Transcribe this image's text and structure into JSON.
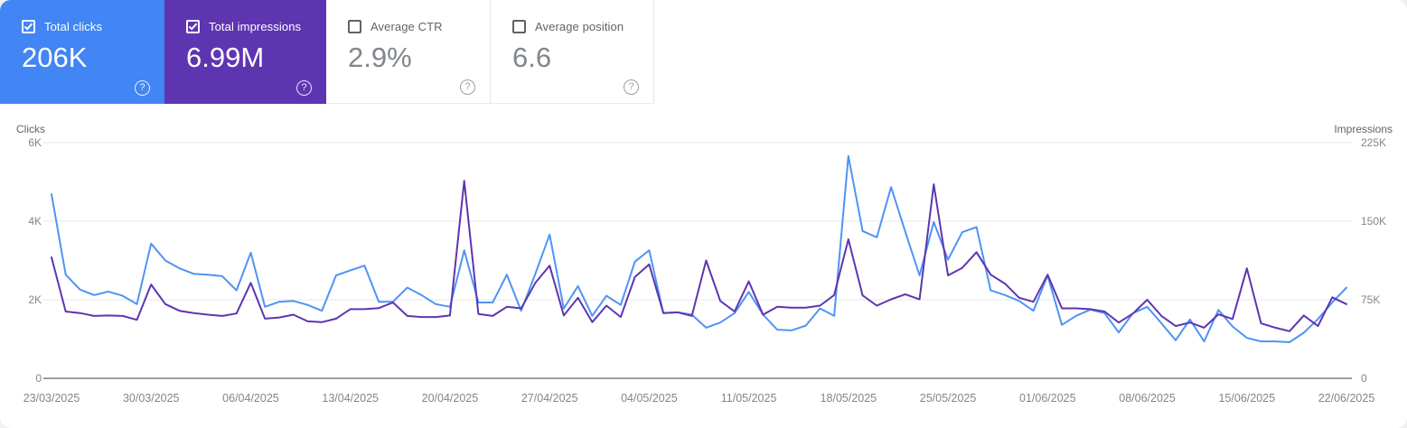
{
  "cards": [
    {
      "label": "Total clicks",
      "value": "206K",
      "selected": true,
      "color": "#4285f4",
      "help_glyph": "?"
    },
    {
      "label": "Total impressions",
      "value": "6.99M",
      "selected": true,
      "color": "#5e35b1",
      "help_glyph": "?"
    },
    {
      "label": "Average CTR",
      "value": "2.9%",
      "selected": false,
      "color": "#ffffff",
      "help_glyph": "?"
    },
    {
      "label": "Average position",
      "value": "6.6",
      "selected": false,
      "color": "#ffffff",
      "help_glyph": "?"
    }
  ],
  "chart_data": {
    "type": "line",
    "grid": true,
    "legend": "none",
    "x_tick_every": 7,
    "left_axis": {
      "label": "Clicks",
      "max": 6000,
      "ticks": [
        {
          "v": 0,
          "label": "0"
        },
        {
          "v": 2000,
          "label": "2K"
        },
        {
          "v": 4000,
          "label": "4K"
        },
        {
          "v": 6000,
          "label": "6K"
        }
      ]
    },
    "right_axis": {
      "label": "Impressions",
      "max": 225000,
      "ticks": [
        {
          "v": 0,
          "label": "0"
        },
        {
          "v": 75000,
          "label": "75K"
        },
        {
          "v": 150000,
          "label": "150K"
        },
        {
          "v": 225000,
          "label": "225K"
        }
      ]
    },
    "dates": [
      "23/03/2025",
      "24/03/2025",
      "25/03/2025",
      "26/03/2025",
      "27/03/2025",
      "28/03/2025",
      "29/03/2025",
      "30/03/2025",
      "31/03/2025",
      "01/04/2025",
      "02/04/2025",
      "03/04/2025",
      "04/04/2025",
      "05/04/2025",
      "06/04/2025",
      "07/04/2025",
      "08/04/2025",
      "09/04/2025",
      "10/04/2025",
      "11/04/2025",
      "12/04/2025",
      "13/04/2025",
      "14/04/2025",
      "15/04/2025",
      "16/04/2025",
      "17/04/2025",
      "18/04/2025",
      "19/04/2025",
      "20/04/2025",
      "21/04/2025",
      "22/04/2025",
      "23/04/2025",
      "24/04/2025",
      "25/04/2025",
      "26/04/2025",
      "27/04/2025",
      "28/04/2025",
      "29/04/2025",
      "30/04/2025",
      "01/05/2025",
      "02/05/2025",
      "03/05/2025",
      "04/05/2025",
      "05/05/2025",
      "06/05/2025",
      "07/05/2025",
      "08/05/2025",
      "09/05/2025",
      "10/05/2025",
      "11/05/2025",
      "12/05/2025",
      "13/05/2025",
      "14/05/2025",
      "15/05/2025",
      "16/05/2025",
      "17/05/2025",
      "18/05/2025",
      "19/05/2025",
      "20/05/2025",
      "21/05/2025",
      "22/05/2025",
      "23/05/2025",
      "24/05/2025",
      "25/05/2025",
      "26/05/2025",
      "27/05/2025",
      "28/05/2025",
      "29/05/2025",
      "30/05/2025",
      "31/05/2025",
      "01/06/2025",
      "02/06/2025",
      "03/06/2025",
      "04/06/2025",
      "05/06/2025",
      "06/06/2025",
      "07/06/2025",
      "08/06/2025",
      "09/06/2025",
      "10/06/2025",
      "11/06/2025",
      "12/06/2025",
      "13/06/2025",
      "14/06/2025",
      "15/06/2025",
      "16/06/2025",
      "17/06/2025",
      "18/06/2025",
      "19/06/2025",
      "20/06/2025",
      "21/06/2025",
      "22/06/2025"
    ],
    "series": [
      {
        "name": "Total clicks",
        "axis": "left",
        "color": "#4e94f5",
        "values": [
          4690,
          2640,
          2260,
          2120,
          2210,
          2100,
          1890,
          3430,
          3000,
          2800,
          2660,
          2640,
          2600,
          2240,
          3200,
          1820,
          1950,
          1970,
          1870,
          1720,
          2620,
          2750,
          2870,
          1950,
          1950,
          2310,
          2120,
          1890,
          1820,
          3260,
          1930,
          1930,
          2640,
          1720,
          2660,
          3660,
          1780,
          2350,
          1590,
          2100,
          1870,
          2970,
          3260,
          1660,
          1680,
          1620,
          1290,
          1420,
          1660,
          2200,
          1620,
          1240,
          1220,
          1340,
          1780,
          1590,
          5660,
          3750,
          3590,
          4870,
          3730,
          2620,
          3980,
          3020,
          3720,
          3850,
          2240,
          2120,
          1970,
          1720,
          2620,
          1360,
          1590,
          1750,
          1660,
          1170,
          1660,
          1820,
          1400,
          970,
          1500,
          940,
          1740,
          1320,
          1030,
          940,
          940,
          920,
          1160,
          1510,
          1930,
          2310
        ]
      },
      {
        "name": "Total impressions",
        "axis": "right",
        "color": "#5e35b1",
        "values": [
          115500,
          63800,
          62300,
          59600,
          60000,
          59600,
          55900,
          89600,
          70900,
          64500,
          62300,
          60800,
          59600,
          61900,
          91100,
          57000,
          58100,
          60800,
          54400,
          53600,
          57000,
          66000,
          66000,
          67100,
          72400,
          59600,
          58500,
          58500,
          60000,
          188600,
          61500,
          59600,
          68300,
          66800,
          91100,
          107600,
          60000,
          76900,
          53600,
          69400,
          58500,
          96800,
          108800,
          62300,
          63000,
          59600,
          112500,
          73900,
          63800,
          92600,
          60800,
          68300,
          67500,
          67500,
          69400,
          79500,
          132800,
          79100,
          69400,
          75400,
          80300,
          75400,
          185300,
          98300,
          105400,
          120400,
          99000,
          90400,
          76900,
          73100,
          99000,
          66800,
          66800,
          66000,
          63800,
          53300,
          61900,
          75000,
          59600,
          49900,
          53300,
          48400,
          61100,
          56600,
          105000,
          52500,
          48400,
          45000,
          60000,
          49900,
          77300,
          70900
        ]
      }
    ],
    "style": {
      "gridline_color": "#e8eaed",
      "baseline_color": "#9aa0a6",
      "tick_text_color": "#80868b",
      "date_text_color": "#80868b"
    }
  }
}
